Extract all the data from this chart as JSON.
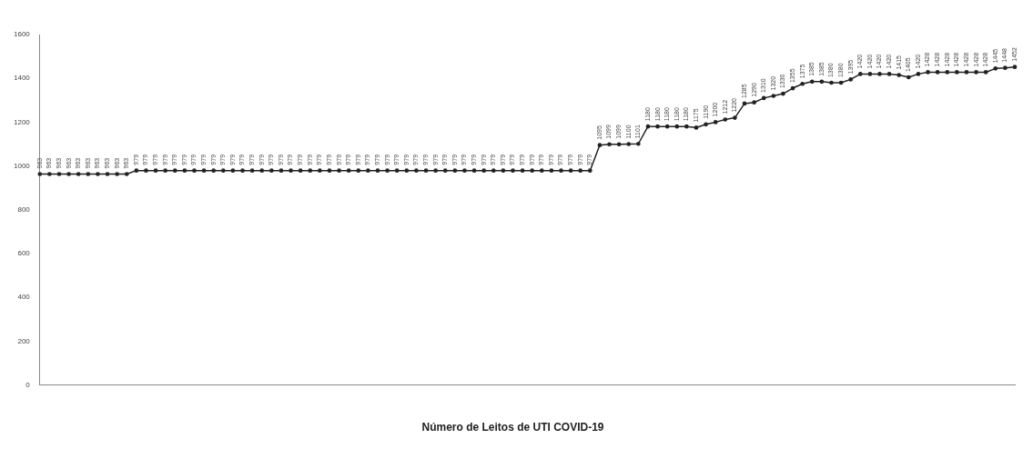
{
  "chart_data": {
    "type": "line",
    "title": "Número de Leitos de UTI COVID-19",
    "categories": [
      null,
      null,
      null,
      null,
      null,
      null,
      null,
      null,
      null,
      null,
      null,
      null,
      null,
      null,
      null,
      null,
      null,
      null,
      null,
      null,
      null,
      null,
      null,
      null,
      null,
      null,
      null,
      null,
      null,
      null,
      null,
      null,
      null,
      null,
      null,
      null,
      null,
      null,
      null,
      null,
      null,
      null,
      null,
      null,
      null,
      null,
      null,
      null,
      null,
      null,
      null,
      null,
      null,
      null,
      null,
      null,
      null,
      null,
      null,
      null,
      null,
      null,
      null,
      null,
      null,
      null,
      null,
      null,
      null,
      null,
      null,
      null,
      null,
      null,
      null,
      null,
      null,
      null,
      null,
      null,
      null,
      null,
      null,
      null,
      null,
      null,
      null,
      null,
      null,
      null,
      null,
      null,
      null,
      null,
      null,
      null,
      null,
      null,
      null,
      null,
      null,
      null
    ],
    "series": [
      {
        "color": "#222222",
        "values": [
          963,
          963,
          963,
          963,
          963,
          963,
          963,
          963,
          963,
          963,
          979,
          979,
          979,
          979,
          979,
          979,
          979,
          979,
          979,
          979,
          979,
          979,
          979,
          979,
          979,
          979,
          979,
          979,
          979,
          979,
          979,
          979,
          979,
          979,
          979,
          979,
          979,
          979,
          979,
          979,
          979,
          979,
          979,
          979,
          979,
          979,
          979,
          979,
          979,
          979,
          979,
          979,
          979,
          979,
          979,
          979,
          979,
          979,
          1095,
          1099,
          1099,
          1100,
          1101,
          1180,
          1180,
          1180,
          1180,
          1180,
          1175,
          1190,
          1200,
          1212,
          1220,
          1285,
          1290,
          1310,
          1320,
          1330,
          1355,
          1375,
          1385,
          1385,
          1380,
          1380,
          1395,
          1420,
          1420,
          1420,
          1420,
          1415,
          1405,
          1420,
          1428,
          1428,
          1428,
          1428,
          1428,
          1428,
          1428,
          1445,
          1448,
          1452
        ]
      }
    ],
    "ylim": [
      0,
      1600
    ],
    "yticks": [
      0,
      200,
      400,
      600,
      800,
      1000,
      1200,
      1400,
      1600
    ],
    "grid": false,
    "legend": false,
    "marker": "circle",
    "line_style": "solid",
    "data_labels": true
  }
}
